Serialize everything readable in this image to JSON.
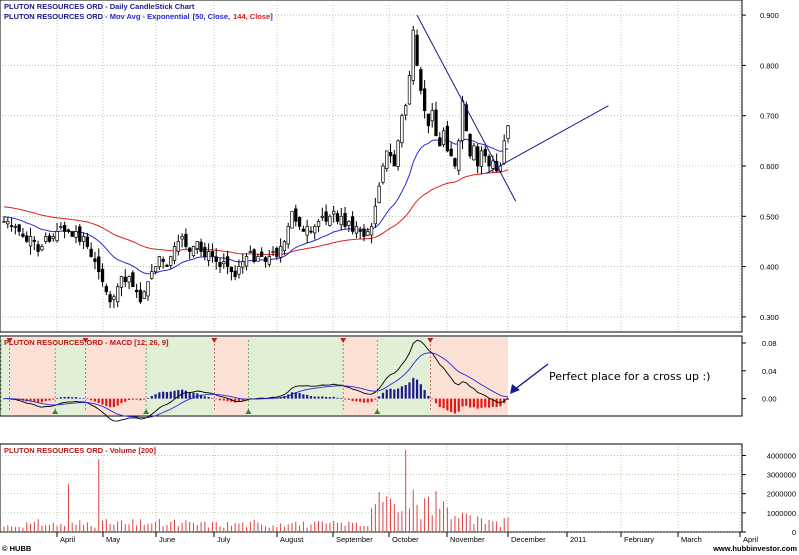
{
  "header": {
    "line1_name": "PLUTON RESOURCES ORD",
    "line1_sep": " - ",
    "line1_desc": "Daily CandleStick Chart",
    "line2_name": "PLUTON RESOURCES ORD",
    "line2_sep": " - ",
    "line2_desc": "Mov Avg - Exponential",
    "line2_p1": "[50, Close,",
    "line2_p2": "144, Close",
    "line2_p3": "]"
  },
  "macd_header": {
    "name": "PLUTON RESOURCES ORD",
    "sep": " - ",
    "desc": "MACD [12, 26, 9]"
  },
  "volume_header": {
    "name": "PLUTON RESOURCES ORD",
    "sep": " - ",
    "desc": "Volume [200]"
  },
  "footer": {
    "left": "© HUBB",
    "right": "www.hubbinvestor.com"
  },
  "annotation": "Perfect place for a cross up :)",
  "colors": {
    "ma50": "#2a2ad6",
    "ma144": "#e02020",
    "green_zone": "#e0efd6",
    "red_zone": "#fbe0d6",
    "hist_pos": "#1a1a8a",
    "hist_neg": "#e01818",
    "volume": "#e04040",
    "trendline": "#1a1a8a"
  },
  "chart_data": [
    {
      "type": "candlestick",
      "title": "PLUTON RESOURCES ORD - Daily CandleStick Chart",
      "y_ticks": [
        0.3,
        0.4,
        0.5,
        0.6,
        0.7,
        0.8,
        0.9
      ],
      "y_tick_labels": [
        "0.300",
        "0.400",
        "0.500",
        "0.600",
        "0.700",
        "0.800",
        "0.900"
      ],
      "ylim": [
        0.27,
        0.93
      ],
      "x_ticks": [
        "April",
        "May",
        "June",
        "July",
        "August",
        "September",
        "October",
        "November",
        "December",
        "2011",
        "February",
        "March",
        "April"
      ],
      "series": [
        {
          "name": "Mov Avg - Exponential [50, Close]",
          "color": "#2a2ad6"
        },
        {
          "name": "Mov Avg - Exponential [144, Close]",
          "color": "#e02020"
        }
      ],
      "closes_approx": [
        0.49,
        0.49,
        0.48,
        0.48,
        0.47,
        0.46,
        0.45,
        0.46,
        0.45,
        0.43,
        0.44,
        0.46,
        0.45,
        0.46,
        0.47,
        0.48,
        0.47,
        0.47,
        0.46,
        0.47,
        0.45,
        0.46,
        0.44,
        0.42,
        0.41,
        0.39,
        0.37,
        0.35,
        0.33,
        0.34,
        0.36,
        0.38,
        0.37,
        0.38,
        0.36,
        0.35,
        0.33,
        0.35,
        0.37,
        0.39,
        0.4,
        0.42,
        0.41,
        0.4,
        0.42,
        0.44,
        0.45,
        0.46,
        0.44,
        0.43,
        0.44,
        0.45,
        0.43,
        0.42,
        0.43,
        0.42,
        0.41,
        0.4,
        0.41,
        0.4,
        0.39,
        0.38,
        0.4,
        0.41,
        0.42,
        0.43,
        0.41,
        0.42,
        0.42,
        0.41,
        0.42,
        0.43,
        0.42,
        0.44,
        0.45,
        0.48,
        0.51,
        0.49,
        0.48,
        0.47,
        0.48,
        0.47,
        0.48,
        0.49,
        0.5,
        0.49,
        0.5,
        0.51,
        0.49,
        0.5,
        0.48,
        0.49,
        0.47,
        0.48,
        0.47,
        0.46,
        0.47,
        0.48,
        0.52,
        0.56,
        0.6,
        0.63,
        0.62,
        0.6,
        0.65,
        0.7,
        0.72,
        0.78,
        0.87,
        0.8,
        0.75,
        0.71,
        0.68,
        0.71,
        0.66,
        0.64,
        0.67,
        0.63,
        0.62,
        0.6,
        0.65,
        0.73,
        0.67,
        0.62,
        0.64,
        0.6,
        0.63,
        0.62,
        0.6,
        0.61,
        0.59,
        0.6,
        0.65,
        0.68
      ],
      "trendlines": [
        {
          "from_x": 0.562,
          "from_y": 0.9,
          "to_x": 0.695,
          "to_y": 0.53
        },
        {
          "from_x": 0.655,
          "from_y": 0.585,
          "to_x": 0.82,
          "to_y": 0.72
        }
      ]
    },
    {
      "type": "line",
      "title": "PLUTON RESOURCES ORD - MACD [12, 26, 9]",
      "y_ticks": [
        0.0,
        0.04,
        0.08
      ],
      "y_tick_labels": [
        "0.00",
        "0.04",
        "0.08"
      ],
      "ylim": [
        -0.025,
        0.09
      ]
    },
    {
      "type": "bar",
      "title": "PLUTON RESOURCES ORD - Volume [200]",
      "y_ticks": [
        0,
        1000000,
        2000000,
        3000000,
        4000000
      ],
      "y_tick_labels": [
        "0",
        "1000000",
        "2000000",
        "3000000",
        "4000000"
      ],
      "ylim": [
        0,
        4600000
      ]
    }
  ]
}
